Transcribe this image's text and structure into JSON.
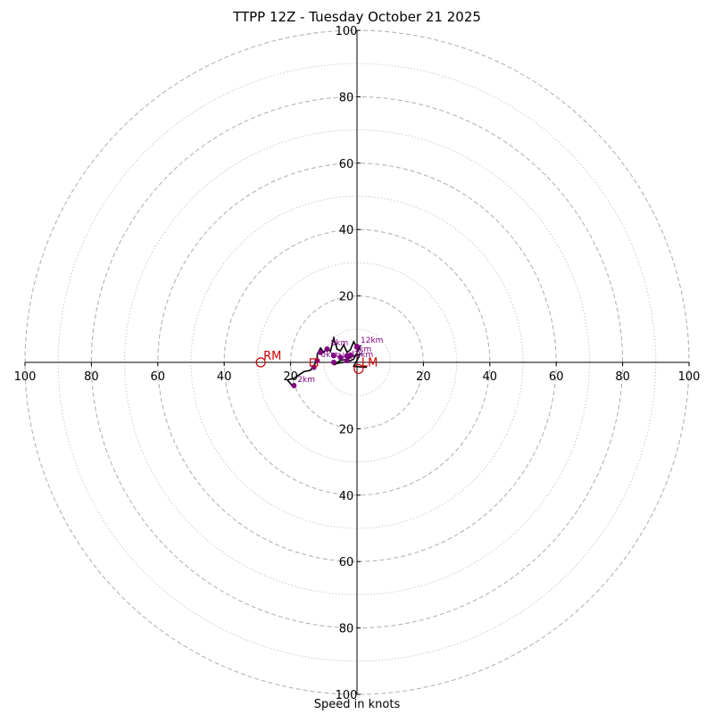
{
  "chart_data": {
    "type": "hodograph",
    "title": "TTPP 12Z - Tuesday October 21 2025",
    "xlabel": "Speed in knots",
    "range_knots": 100,
    "major_rings": [
      20,
      40,
      60,
      80,
      100
    ],
    "minor_rings": [
      10,
      30,
      50,
      70,
      90
    ],
    "tick_labels": [
      "100",
      "80",
      "60",
      "40",
      "20",
      "20",
      "40",
      "60",
      "80",
      "100"
    ],
    "tick_values": [
      -100,
      -80,
      -60,
      -40,
      -20,
      20,
      40,
      60,
      80,
      100
    ],
    "wind_trace": {
      "color": "#000000",
      "points": [
        [
          -19,
          -7.6
        ],
        [
          -21,
          -5.3
        ],
        [
          -19,
          -4.8
        ],
        [
          -16,
          -2.8
        ],
        [
          -14,
          -2.4
        ],
        [
          -13,
          -1.0
        ],
        [
          -12,
          0.5
        ],
        [
          -12,
          2.4
        ],
        [
          -11,
          4.3
        ],
        [
          -10,
          3.0
        ],
        [
          -9,
          4.5
        ],
        [
          -8,
          3.3
        ],
        [
          -7,
          7.3
        ],
        [
          -6,
          4.0
        ],
        [
          -5,
          3.5
        ],
        [
          -4,
          5.3
        ],
        [
          -3,
          3.0
        ],
        [
          -2,
          3.8
        ],
        [
          -1,
          6.2
        ],
        [
          0,
          4.3
        ],
        [
          1,
          4.8
        ],
        [
          -1,
          1.0
        ],
        [
          -2,
          0.5
        ],
        [
          -4,
          0.0
        ],
        [
          -6,
          -0.3
        ],
        [
          -7,
          -0.8
        ],
        [
          -5,
          0.6
        ],
        [
          -3,
          0.9
        ],
        [
          -2,
          1.5
        ],
        [
          1,
          2.5
        ],
        [
          -1,
          -1.2
        ],
        [
          3,
          -1.5
        ]
      ]
    },
    "height_markers": {
      "color": "#800080",
      "points": [
        {
          "x": -19,
          "y": -7.0,
          "label": "2km"
        },
        {
          "x": -13,
          "y": -1.5,
          "label": ""
        },
        {
          "x": -12,
          "y": 0.5,
          "label": "0km"
        },
        {
          "x": -11,
          "y": 3.0,
          "label": ""
        },
        {
          "x": -9,
          "y": 4.0,
          "label": "8km"
        },
        {
          "x": -7,
          "y": 2.0,
          "label": ""
        },
        {
          "x": -5,
          "y": 1.5,
          "label": ""
        },
        {
          "x": -3,
          "y": 2.0,
          "label": ""
        },
        {
          "x": -2,
          "y": 2.2,
          "label": "9km"
        },
        {
          "x": -7,
          "y": 0.0,
          "label": "1km"
        },
        {
          "x": 0,
          "y": 4.8,
          "label": "12km"
        },
        {
          "x": -3,
          "y": 0.5,
          "label": "10km"
        }
      ]
    },
    "storm_motion": [
      {
        "label": "RM",
        "x": -29,
        "y": 0,
        "color": "#cc0000"
      },
      {
        "label": "LM",
        "x": 0.5,
        "y": -2.0,
        "color": "#cc0000"
      }
    ],
    "mean_wind": {
      "x": -13,
      "y": 0,
      "color": "#cc0000"
    }
  }
}
